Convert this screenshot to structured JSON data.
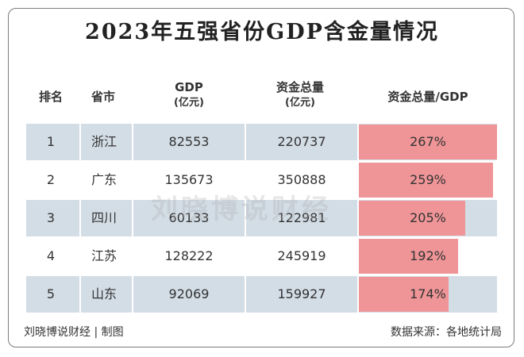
{
  "chart_data": {
    "type": "table",
    "title": "2023年五强省份GDP含金量情况",
    "headers": {
      "rank": "排名",
      "province": "省市",
      "gdp": "GDP",
      "gdp_unit": "(亿元)",
      "funds": "资金总量",
      "funds_unit": "(亿元)",
      "ratio": "资金总量/GDP"
    },
    "rows": [
      {
        "rank": "1",
        "province": "浙江",
        "gdp": "82553",
        "funds": "220737",
        "ratio_label": "267%",
        "ratio": 267
      },
      {
        "rank": "2",
        "province": "广东",
        "gdp": "135673",
        "funds": "350888",
        "ratio_label": "259%",
        "ratio": 259
      },
      {
        "rank": "3",
        "province": "四川",
        "gdp": "60133",
        "funds": "122981",
        "ratio_label": "205%",
        "ratio": 205
      },
      {
        "rank": "4",
        "province": "江苏",
        "gdp": "128222",
        "funds": "245919",
        "ratio_label": "192%",
        "ratio": 192
      },
      {
        "rank": "5",
        "province": "山东",
        "gdp": "92069",
        "funds": "159927",
        "ratio_label": "174%",
        "ratio": 174
      }
    ],
    "bar_color": "#ef9597",
    "row_shade_color": "#d3dde6"
  },
  "watermark": "刘晓博说财经",
  "footer": {
    "left": "刘晓博说财经 | 制图",
    "right": "数据来源：各地统计局"
  }
}
